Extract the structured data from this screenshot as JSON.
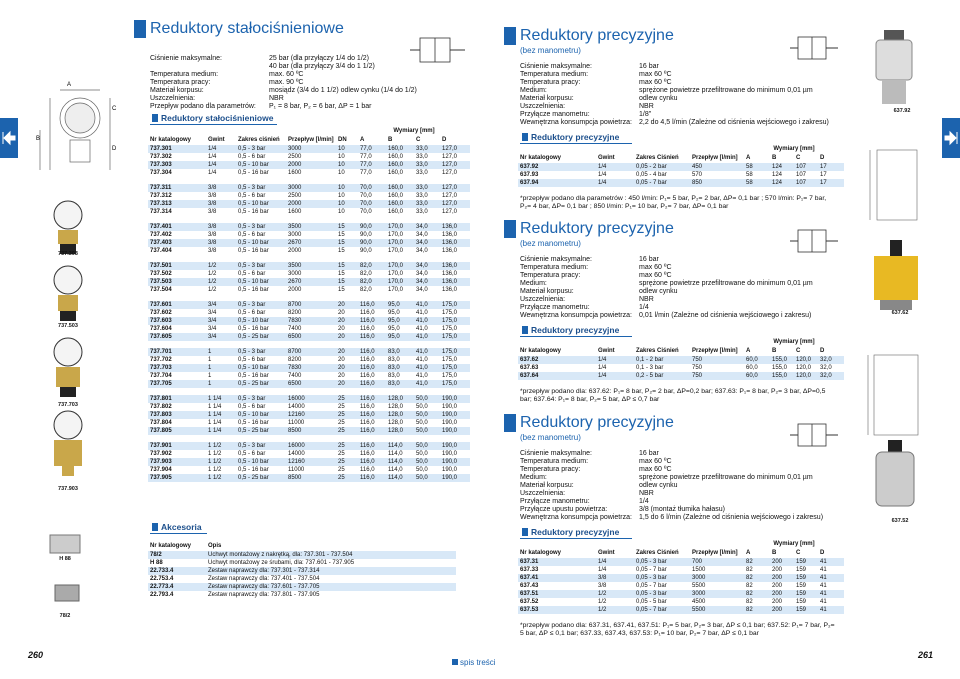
{
  "left": {
    "title": "Reduktory stałociśnieniowe",
    "specs": [
      {
        "label": "Ciśnienie maksymalne:",
        "value": [
          "25 bar (dla przyłączy 1/4 do 1/2)",
          "40 bar (dla przyłączy 3/4 do 1 1/2)"
        ]
      },
      {
        "label": "Temperatura medium:",
        "value": "max. 60 ºC"
      },
      {
        "label": "Temperatura pracy:",
        "value": "max. 90 ºC"
      },
      {
        "label": "Materiał korpusu:",
        "value": "mosiądz (3/4 do 1 1/2) odlew cynku (1/4 do 1/2)"
      },
      {
        "label": "Uszczelnienia:",
        "value": "NBR"
      },
      {
        "label": "Przepływ podano dla parametrów:",
        "value": "P₁ = 8 bar, P₂ = 6 bar, ΔP = 1 bar"
      }
    ],
    "section": "Reduktory stałociśnieniowe",
    "table": {
      "dims_label": "Wymiary [mm]",
      "headers": [
        "Nr katalogowy",
        "Gwint",
        "Zakres ciśnień",
        "Przepływ [l/min]",
        "DN",
        "A",
        "B",
        "C",
        "D"
      ],
      "groups": [
        [
          [
            "737.301",
            "1/4",
            "0,5 - 3 bar",
            "3000",
            "10",
            "77,0",
            "160,0",
            "33,0",
            "127,0"
          ],
          [
            "737.302",
            "1/4",
            "0,5 - 6 bar",
            "2500",
            "10",
            "77,0",
            "160,0",
            "33,0",
            "127,0"
          ],
          [
            "737.303",
            "1/4",
            "0,5 - 10 bar",
            "2000",
            "10",
            "77,0",
            "160,0",
            "33,0",
            "127,0"
          ],
          [
            "737.304",
            "1/4",
            "0,5 - 16 bar",
            "1600",
            "10",
            "77,0",
            "160,0",
            "33,0",
            "127,0"
          ]
        ],
        [
          [
            "737.311",
            "3/8",
            "0,5 - 3 bar",
            "3000",
            "10",
            "70,0",
            "160,0",
            "33,0",
            "127,0"
          ],
          [
            "737.312",
            "3/8",
            "0,5 - 6 bar",
            "2500",
            "10",
            "70,0",
            "160,0",
            "33,0",
            "127,0"
          ],
          [
            "737.313",
            "3/8",
            "0,5 - 10 bar",
            "2000",
            "10",
            "70,0",
            "160,0",
            "33,0",
            "127,0"
          ],
          [
            "737.314",
            "3/8",
            "0,5 - 16 bar",
            "1600",
            "10",
            "70,0",
            "160,0",
            "33,0",
            "127,0"
          ]
        ],
        [
          [
            "737.401",
            "3/8",
            "0,5 - 3 bar",
            "3500",
            "15",
            "90,0",
            "170,0",
            "34,0",
            "136,0"
          ],
          [
            "737.402",
            "3/8",
            "0,5 - 6 bar",
            "3000",
            "15",
            "90,0",
            "170,0",
            "34,0",
            "136,0"
          ],
          [
            "737.403",
            "3/8",
            "0,5 - 10 bar",
            "2670",
            "15",
            "90,0",
            "170,0",
            "34,0",
            "136,0"
          ],
          [
            "737.404",
            "3/8",
            "0,5 - 16 bar",
            "2000",
            "15",
            "90,0",
            "170,0",
            "34,0",
            "136,0"
          ]
        ],
        [
          [
            "737.501",
            "1/2",
            "0,5 - 3 bar",
            "3500",
            "15",
            "82,0",
            "170,0",
            "34,0",
            "136,0"
          ],
          [
            "737.502",
            "1/2",
            "0,5 - 6 bar",
            "3000",
            "15",
            "82,0",
            "170,0",
            "34,0",
            "136,0"
          ],
          [
            "737.503",
            "1/2",
            "0,5 - 10 bar",
            "2670",
            "15",
            "82,0",
            "170,0",
            "34,0",
            "136,0"
          ],
          [
            "737.504",
            "1/2",
            "0,5 - 16 bar",
            "2000",
            "15",
            "82,0",
            "170,0",
            "34,0",
            "136,0"
          ]
        ],
        [
          [
            "737.601",
            "3/4",
            "0,5 - 3 bar",
            "8700",
            "20",
            "116,0",
            "95,0",
            "41,0",
            "175,0"
          ],
          [
            "737.602",
            "3/4",
            "0,5 - 6 bar",
            "8200",
            "20",
            "116,0",
            "95,0",
            "41,0",
            "175,0"
          ],
          [
            "737.603",
            "3/4",
            "0,5 - 10 bar",
            "7830",
            "20",
            "116,0",
            "95,0",
            "41,0",
            "175,0"
          ],
          [
            "737.604",
            "3/4",
            "0,5 - 16 bar",
            "7400",
            "20",
            "116,0",
            "95,0",
            "41,0",
            "175,0"
          ],
          [
            "737.605",
            "3/4",
            "0,5 - 25 bar",
            "6500",
            "20",
            "116,0",
            "95,0",
            "41,0",
            "175,0"
          ]
        ],
        [
          [
            "737.701",
            "1",
            "0,5 - 3 bar",
            "8700",
            "20",
            "116,0",
            "83,0",
            "41,0",
            "175,0"
          ],
          [
            "737.702",
            "1",
            "0,5 - 6 bar",
            "8200",
            "20",
            "116,0",
            "83,0",
            "41,0",
            "175,0"
          ],
          [
            "737.703",
            "1",
            "0,5 - 10 bar",
            "7830",
            "20",
            "116,0",
            "83,0",
            "41,0",
            "175,0"
          ],
          [
            "737.704",
            "1",
            "0,5 - 16 bar",
            "7400",
            "20",
            "116,0",
            "83,0",
            "41,0",
            "175,0"
          ],
          [
            "737.705",
            "1",
            "0,5 - 25 bar",
            "6500",
            "20",
            "116,0",
            "83,0",
            "41,0",
            "175,0"
          ]
        ],
        [
          [
            "737.801",
            "1 1/4",
            "0,5 - 3 bar",
            "16000",
            "25",
            "116,0",
            "128,0",
            "50,0",
            "190,0"
          ],
          [
            "737.802",
            "1 1/4",
            "0,5 - 6 bar",
            "14000",
            "25",
            "116,0",
            "128,0",
            "50,0",
            "190,0"
          ],
          [
            "737.803",
            "1 1/4",
            "0,5 - 10 bar",
            "12160",
            "25",
            "116,0",
            "128,0",
            "50,0",
            "190,0"
          ],
          [
            "737.804",
            "1 1/4",
            "0,5 - 16 bar",
            "11000",
            "25",
            "116,0",
            "128,0",
            "50,0",
            "190,0"
          ],
          [
            "737.805",
            "1 1/4",
            "0,5 - 25 bar",
            "8500",
            "25",
            "116,0",
            "128,0",
            "50,0",
            "190,0"
          ]
        ],
        [
          [
            "737.901",
            "1 1/2",
            "0,5 - 3 bar",
            "16000",
            "25",
            "116,0",
            "114,0",
            "50,0",
            "190,0"
          ],
          [
            "737.902",
            "1 1/2",
            "0,5 - 6 bar",
            "14000",
            "25",
            "116,0",
            "114,0",
            "50,0",
            "190,0"
          ],
          [
            "737.903",
            "1 1/2",
            "0,5 - 10 bar",
            "12160",
            "25",
            "116,0",
            "114,0",
            "50,0",
            "190,0"
          ],
          [
            "737.904",
            "1 1/2",
            "0,5 - 16 bar",
            "11000",
            "25",
            "116,0",
            "114,0",
            "50,0",
            "190,0"
          ],
          [
            "737.905",
            "1 1/2",
            "0,5 - 25 bar",
            "8500",
            "25",
            "116,0",
            "114,0",
            "50,0",
            "190,0"
          ]
        ]
      ]
    },
    "accessories": {
      "title": "Akcesoria",
      "headers": [
        "Nr katalogowy",
        "Opis"
      ],
      "rows": [
        [
          "78/2",
          "Uchwyt montażowy z nakrętką, dla: 737.301 - 737.504"
        ],
        [
          "H 88",
          "Uchwyt montażowy ze śrubami, dla: 737.601 - 737.905"
        ],
        [
          "22.733.4",
          "Zestaw naprawczy dla: 737.301 - 737.314"
        ],
        [
          "22.753.4",
          "Zestaw naprawczy dla: 737.401 - 737.504"
        ],
        [
          "22.773.4",
          "Zestaw naprawczy dla: 737.601 - 737.705"
        ],
        [
          "22.793.4",
          "Zestaw naprawczy dla: 737.801 - 737.905"
        ]
      ]
    },
    "diagram_labels": [
      "A",
      "B",
      "C",
      "D"
    ],
    "image_labels": [
      "737.303",
      "737.503",
      "737.703",
      "737.903",
      "H 88",
      "78/2"
    ],
    "page_number": "260"
  },
  "right": {
    "sections": [
      {
        "title": "Reduktory precyzyjne",
        "subtitle": "(bez manometru)",
        "specs": [
          {
            "label": "Ciśnienie maksymalne:",
            "value": "16 bar"
          },
          {
            "label": "Temperatura medium:",
            "value": "max 60 ºC"
          },
          {
            "label": "Temperatura pracy:",
            "value": "max 60 ºC"
          },
          {
            "label": "Medium:",
            "value": "sprężone powietrze przefiltrowane do minimum 0,01 µm"
          },
          {
            "label": "Materiał korpusu:",
            "value": "odlew cynku"
          },
          {
            "label": "Uszczelnienia:",
            "value": "NBR"
          },
          {
            "label": "Przyłącze manometru:",
            "value": "1/8\""
          },
          {
            "label": "Wewnętrzna konsumpcja powietrza:",
            "value": "2,2 do 4,5 l/min (Zależne od ciśnienia wejściowego i zakresu)"
          }
        ],
        "table_title": "Reduktory precyzyjne",
        "table": {
          "dims_label": "Wymiary [mm]",
          "headers": [
            "Nr katalogowy",
            "Gwint",
            "Zakres Ciśnień",
            "Przepływ [l/min]",
            "A",
            "B",
            "C",
            "D"
          ],
          "rows": [
            [
              "637.92",
              "1/4",
              "0,05 - 2 bar",
              "450",
              "58",
              "124",
              "107",
              "17"
            ],
            [
              "637.93",
              "1/4",
              "0,05 - 4 bar",
              "570",
              "58",
              "124",
              "107",
              "17"
            ],
            [
              "637.94",
              "1/4",
              "0,05 - 7 bar",
              "850",
              "58",
              "124",
              "107",
              "17"
            ]
          ]
        },
        "note": "*przepływ podano dla parametrów : 450 l/min: P₁= 5 bar, P₂= 2 bar, ΔP= 0,1 bar ; 570 l/min: P₁= 7 bar, P₂= 4 bar, ΔP= 0,1 bar ; 850 l/min: P₁= 10 bar, P₂= 7 bar, ΔP= 0,1 bar"
      },
      {
        "title": "Reduktory precyzyjne",
        "subtitle": "(bez manometru)",
        "specs": [
          {
            "label": "Ciśnienie maksymalne:",
            "value": "16 bar"
          },
          {
            "label": "Temperatura medium:",
            "value": "max 60 ºC"
          },
          {
            "label": "Temperatura pracy:",
            "value": "max 60 ºC"
          },
          {
            "label": "Medium:",
            "value": "sprężone powietrze przefiltrowane do minimum 0,01 µm"
          },
          {
            "label": "Materiał korpusu:",
            "value": "odlew cynku"
          },
          {
            "label": "Uszczelnienia:",
            "value": "NBR"
          },
          {
            "label": "Przyłącze manometru:",
            "value": "1/4"
          },
          {
            "label": "Wewnętrzna konsumpcja powietrza:",
            "value": "0,01 l/min (Zależne od ciśnienia wejściowego i zakresu)"
          }
        ],
        "table_title": "Reduktory precyzyjne",
        "table": {
          "dims_label": "Wymiary [mm]",
          "headers": [
            "Nr katalogowy",
            "Gwint",
            "Zakres Ciśnień",
            "Przepływ [l/min]",
            "A",
            "B",
            "C",
            "D"
          ],
          "rows": [
            [
              "637.62",
              "1/4",
              "0,1 - 2 bar",
              "750",
              "60,0",
              "155,0",
              "120,0",
              "32,0"
            ],
            [
              "637.63",
              "1/4",
              "0,1 - 3 bar",
              "750",
              "60,0",
              "155,0",
              "120,0",
              "32,0"
            ],
            [
              "637.64",
              "1/4",
              "0,2 - 5 bar",
              "750",
              "60,0",
              "155,0",
              "120,0",
              "32,0"
            ]
          ]
        },
        "note": "*przepływ podano dla: 637.62: P₁= 8 bar, P₂= 2 bar, ΔP=0,2 bar; 637.63: P₁= 8 bar, P₂= 3 bar, ΔP=0,5 bar; 637.64: P₁= 8 bar, P₂= 5 bar, ΔP ≤ 0,7 bar"
      },
      {
        "title": "Reduktory precyzyjne",
        "subtitle": "(bez manometru)",
        "specs": [
          {
            "label": "Ciśnienie maksymalne:",
            "value": "16 bar"
          },
          {
            "label": "Temperatura medium:",
            "value": "max 60 ºC"
          },
          {
            "label": "Temperatura pracy:",
            "value": "max 60 ºC"
          },
          {
            "label": "Medium:",
            "value": "sprężone powietrze przefiltrowane do minimum 0,01 µm"
          },
          {
            "label": "Materiał korpusu:",
            "value": "odlew cynku"
          },
          {
            "label": "Uszczelnienia:",
            "value": "NBR"
          },
          {
            "label": "Przyłącze manometru:",
            "value": "1/4"
          },
          {
            "label": "Przyłącze upustu powietrza:",
            "value": "3/8 (montaż tłumika hałasu)"
          },
          {
            "label": "Wewnętrzna konsumpcja powietrza:",
            "value": "1,5 do 6 l/min (Zależne od ciśnienia wejściowego i zakresu)"
          }
        ],
        "table_title": "Reduktory precyzyjne",
        "table": {
          "dims_label": "Wymiary [mm]",
          "headers": [
            "Nr katalogowy",
            "Gwint",
            "Zakres Ciśnień",
            "Przepływ [l/min]",
            "A",
            "B",
            "C",
            "D"
          ],
          "rows": [
            [
              "637.31",
              "1/4",
              "0,05 - 3 bar",
              "700",
              "82",
              "200",
              "159",
              "41"
            ],
            [
              "637.33",
              "1/4",
              "0,05 - 7 bar",
              "1500",
              "82",
              "200",
              "159",
              "41"
            ],
            [
              "637.41",
              "3/8",
              "0,05 - 3 bar",
              "3000",
              "82",
              "200",
              "159",
              "41"
            ],
            [
              "637.43",
              "3/8",
              "0,05 - 7 bar",
              "5500",
              "82",
              "200",
              "159",
              "41"
            ],
            [
              "637.51",
              "1/2",
              "0,05 - 3 bar",
              "3000",
              "82",
              "200",
              "159",
              "41"
            ],
            [
              "637.52",
              "1/2",
              "0,05 - 5 bar",
              "4500",
              "82",
              "200",
              "159",
              "41"
            ],
            [
              "637.53",
              "1/2",
              "0,05 - 7 bar",
              "5500",
              "82",
              "200",
              "159",
              "41"
            ]
          ]
        },
        "note": "*przepływ podano dla: 637.31, 637.41, 637.51: P₁= 5 bar, P₂= 3 bar, ΔP ≤ 0,1 bar; 637.52: P₁= 7 bar, P₂= 5 bar, ΔP ≤ 0,1 bar; 637.33, 637.43, 637.53: P₁= 10 bar, P₂= 7 bar, ΔP ≤ 0,1 bar"
      }
    ],
    "image_labels": [
      "637.92",
      "637.62",
      "637.52"
    ],
    "page_number": "261"
  },
  "footer": "spis treści"
}
